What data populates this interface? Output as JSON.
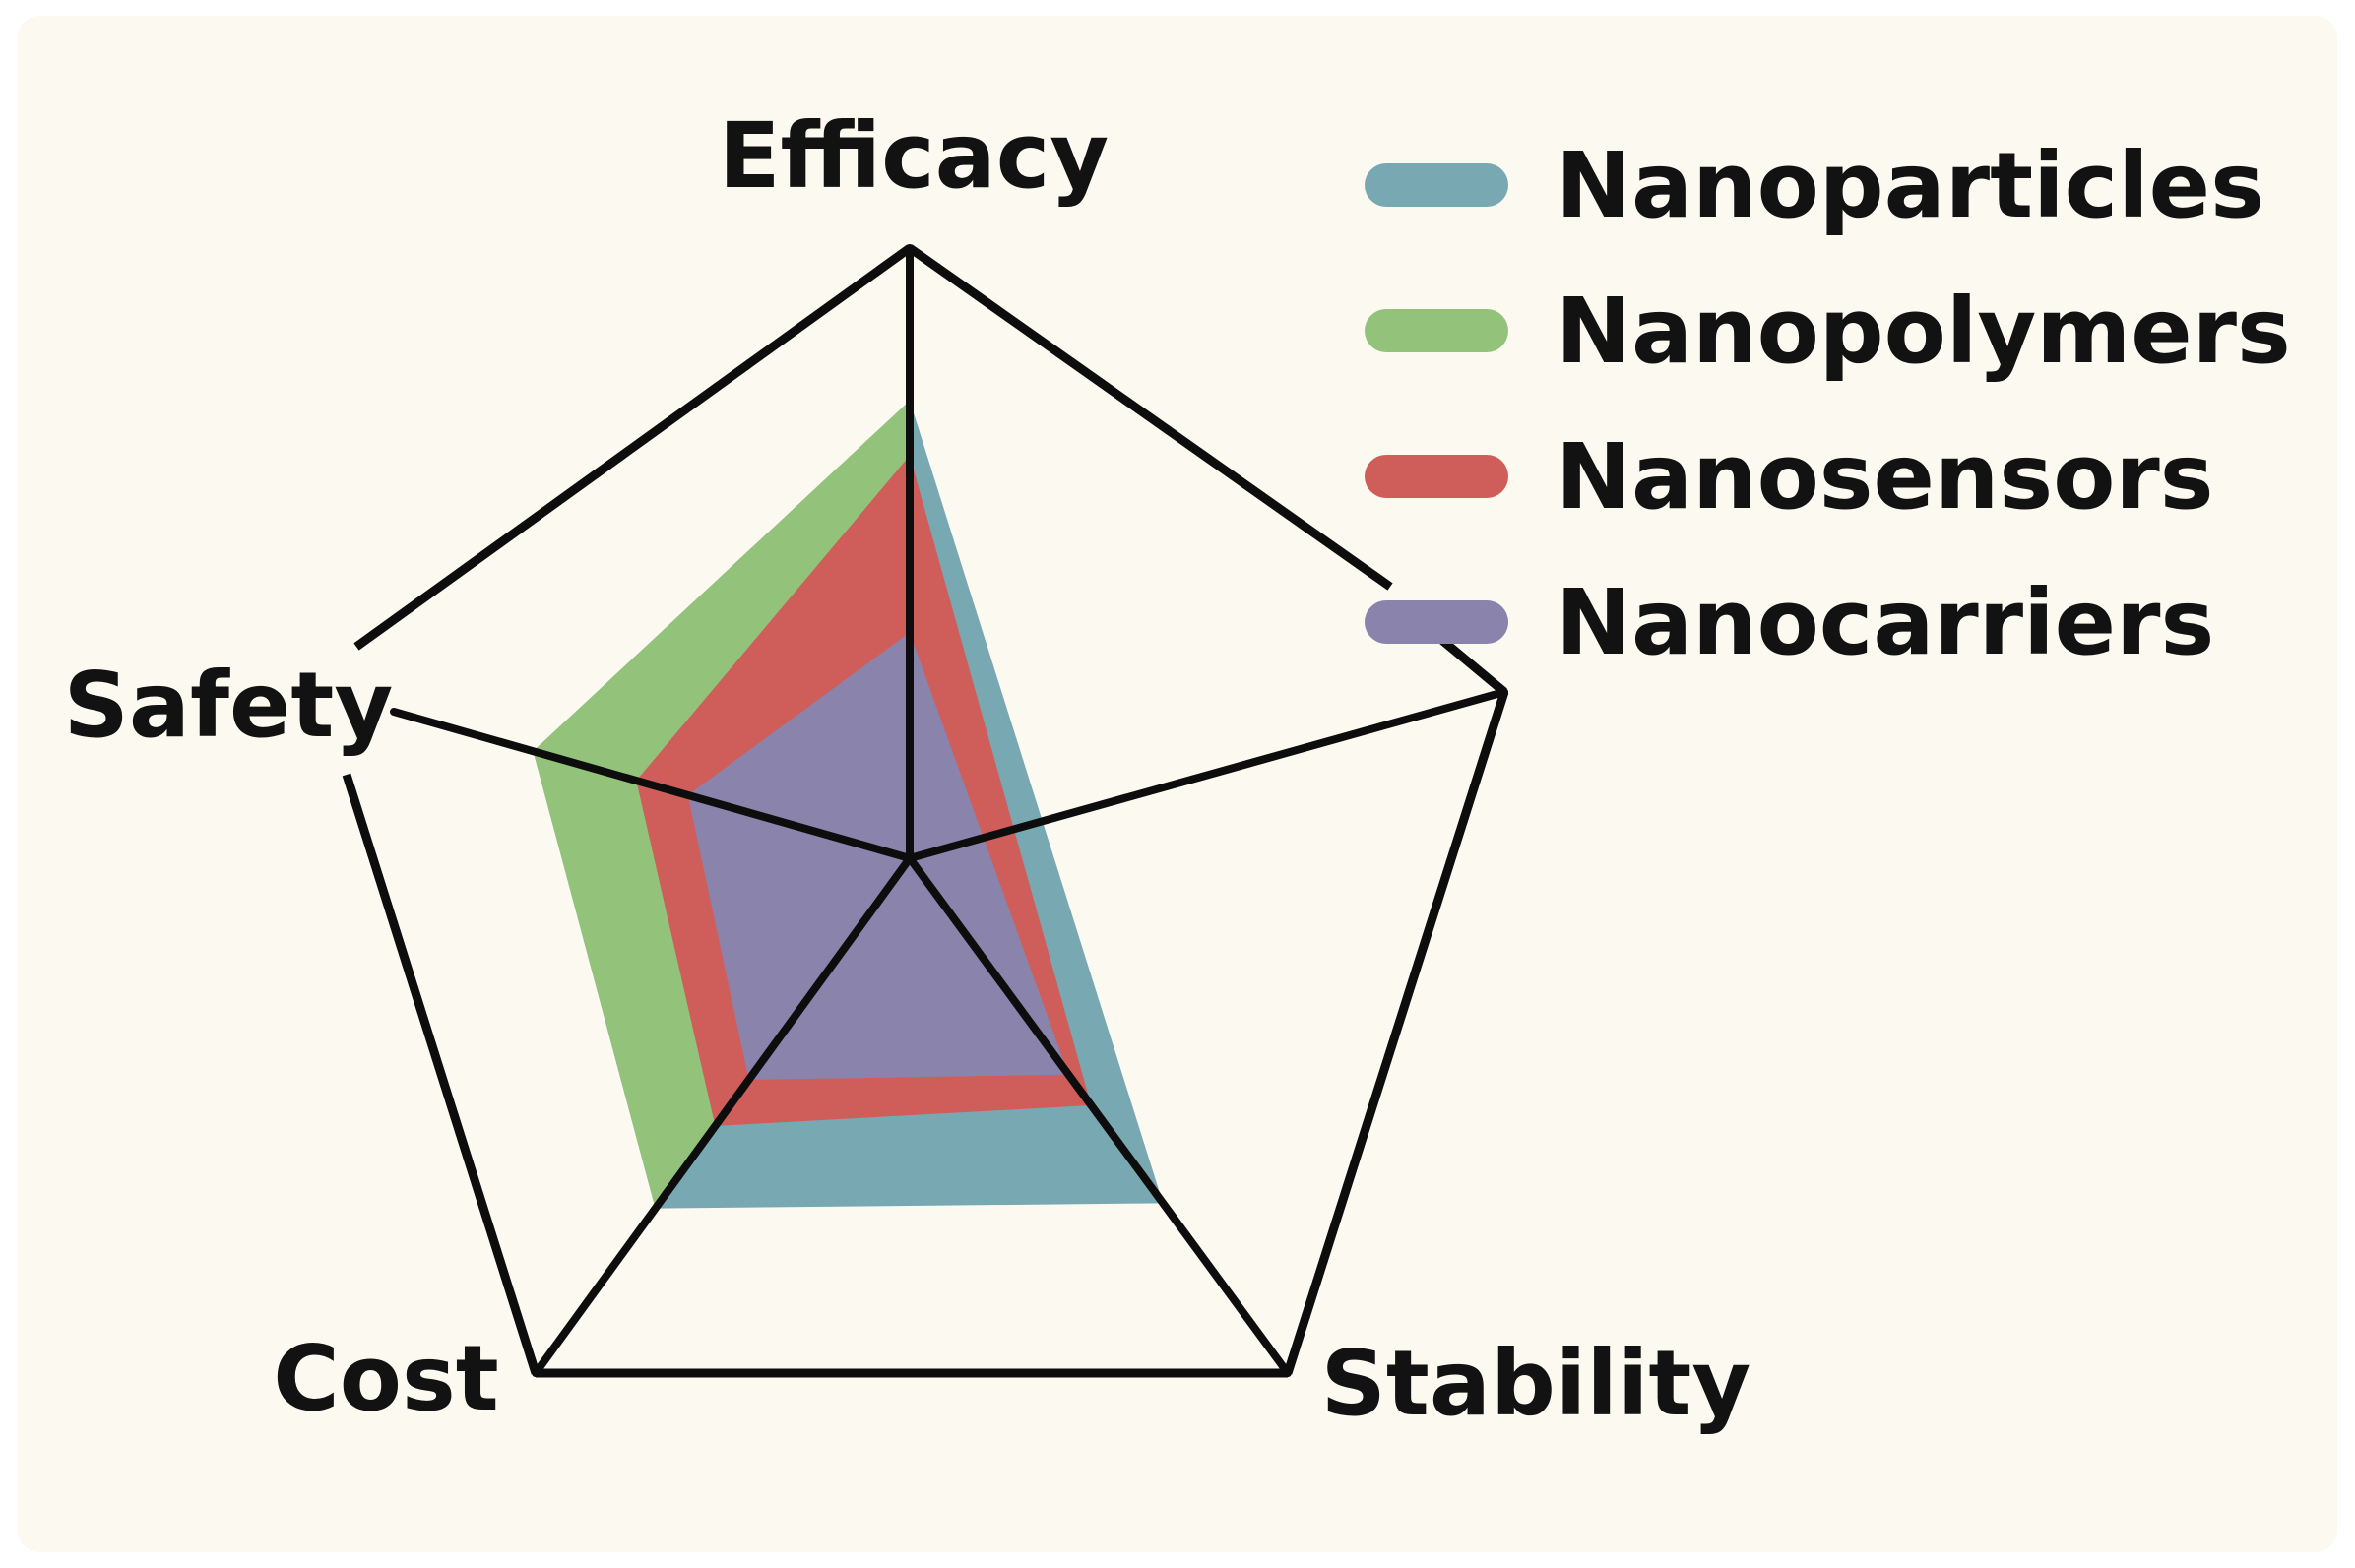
{
  "chart_data": {
    "type": "radar",
    "axes": [
      "Efficacy",
      "Stability",
      "Cost",
      "Safety"
    ],
    "series": [
      {
        "name": "Nanoparticles",
        "color": "#78a9b3",
        "values": {
          "Efficacy": 0.75,
          "Stability": 0.67,
          "Cost": 0.68,
          "Safety": 0.73
        }
      },
      {
        "name": "Nanopolymers",
        "color": "#93c27a",
        "values": {
          "Efficacy": 0.75,
          "Stability": 0.0,
          "Cost": 0.68,
          "Safety": 0.73
        }
      },
      {
        "name": "Nanosensors",
        "color": "#cf5e5b",
        "values": {
          "Efficacy": 0.66,
          "Stability": 0.48,
          "Cost": 0.52,
          "Safety": 0.53
        }
      },
      {
        "name": "Nanocarriers",
        "color": "#8a83ac",
        "values": {
          "Efficacy": 0.37,
          "Stability": 0.42,
          "Cost": 0.43,
          "Safety": 0.43
        }
      }
    ],
    "grid": false,
    "legend": "top-right"
  },
  "page": {
    "background": "#fcf9f1",
    "frame_color": "#0d0d0d"
  }
}
